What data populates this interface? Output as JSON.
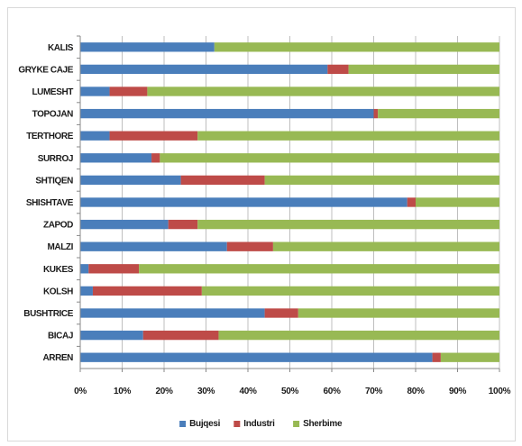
{
  "chart_data": {
    "type": "bar",
    "orientation": "horizontal",
    "stacked": "percent",
    "title": "",
    "xlabel": "",
    "ylabel": "",
    "xlim": [
      0,
      100
    ],
    "x_ticks": [
      "0%",
      "10%",
      "20%",
      "30%",
      "40%",
      "50%",
      "60%",
      "70%",
      "80%",
      "90%",
      "100%"
    ],
    "grid": true,
    "legend": "bottom",
    "categories": [
      "KALIS",
      "GRYKE CAJE",
      "LUMESHT",
      "TOPOJAN",
      "TERTHORE",
      "SURROJ",
      "SHTIQEN",
      "SHISHTAVE",
      "ZAPOD",
      "MALZI",
      "KUKES",
      "KOLSH",
      "BUSHTRICE",
      "BICAJ",
      "ARREN"
    ],
    "series": [
      {
        "name": "Bujqesi",
        "color": "#4a7ebb",
        "values": [
          32,
          59,
          7,
          70,
          7,
          17,
          24,
          78,
          21,
          35,
          2,
          3,
          44,
          15,
          84
        ]
      },
      {
        "name": "Industri",
        "color": "#be4b48",
        "values": [
          0,
          5,
          9,
          1,
          21,
          2,
          20,
          2,
          7,
          11,
          12,
          26,
          8,
          18,
          2
        ]
      },
      {
        "name": "Sherbime",
        "color": "#98b954",
        "values": [
          68,
          36,
          84,
          29,
          72,
          81,
          56,
          20,
          72,
          54,
          86,
          71,
          48,
          67,
          14
        ]
      }
    ]
  }
}
